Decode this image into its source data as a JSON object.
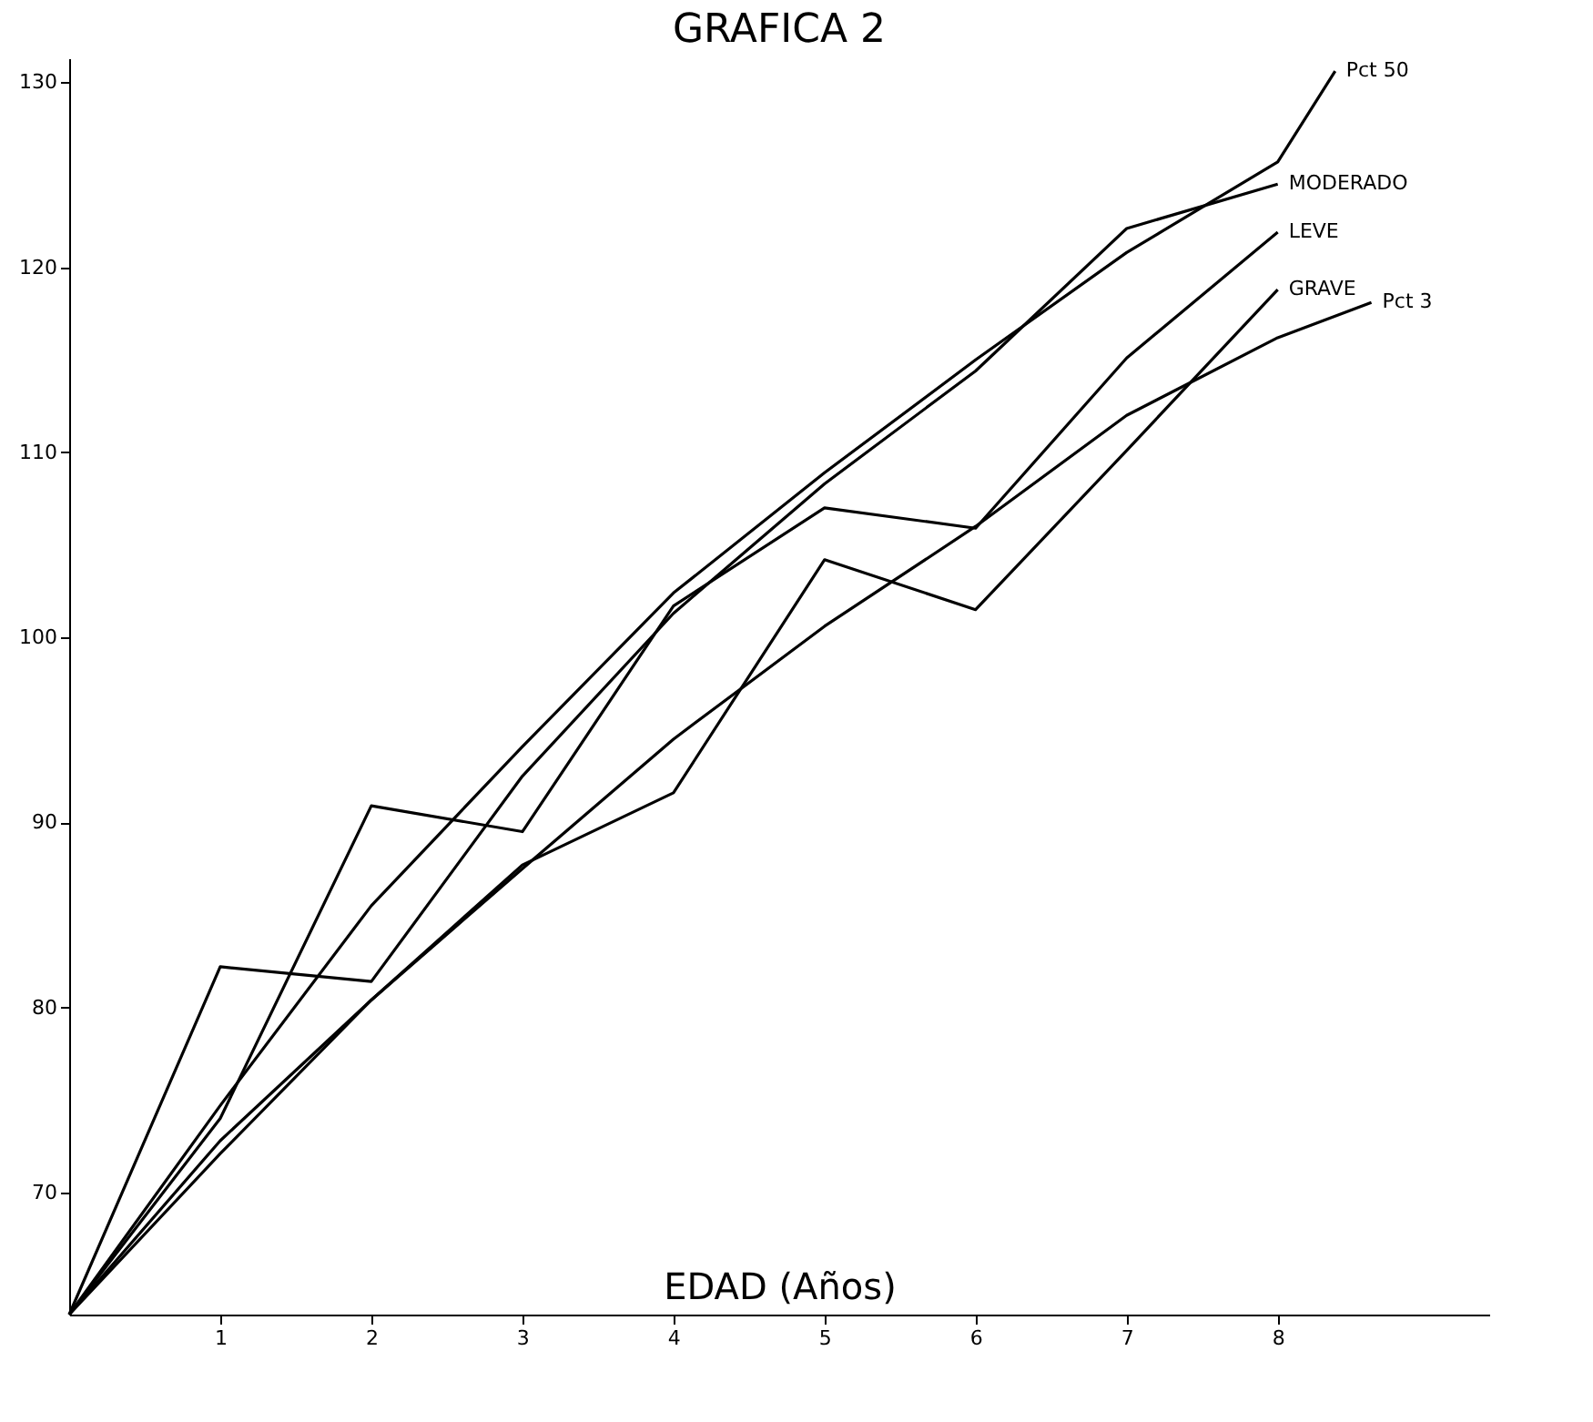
{
  "chart_data": {
    "type": "line",
    "title": "GRAFICA 2",
    "xlabel": "EDAD (Años)",
    "x": [
      0,
      1,
      2,
      3,
      4,
      5,
      6,
      7,
      8
    ],
    "xlim": [
      0,
      9.4
    ],
    "xticks": [
      1,
      2,
      3,
      4,
      5,
      6,
      7,
      8
    ],
    "ylim": [
      63.4,
      131.3
    ],
    "yticks": [
      70,
      80,
      90,
      100,
      110,
      120,
      130
    ],
    "grid": false,
    "legend": false,
    "marker": "none",
    "line_style": "solid",
    "series": [
      {
        "name": "Pct 50",
        "color": "#000000",
        "x": [
          0,
          1,
          2,
          3,
          4,
          5,
          6,
          7,
          8,
          8.38
        ],
        "values": [
          63.4,
          74.7,
          85.5,
          94.1,
          102.4,
          108.9,
          115.0,
          120.8,
          125.7,
          130.6
        ]
      },
      {
        "name": "MODERADO",
        "color": "#000000",
        "values": [
          63.4,
          82.2,
          81.4,
          92.5,
          101.3,
          108.3,
          114.4,
          122.1,
          124.5
        ]
      },
      {
        "name": "LEVE",
        "color": "#000000",
        "values": [
          63.4,
          74.0,
          90.9,
          89.5,
          101.7,
          107.0,
          105.9,
          115.1,
          121.9
        ]
      },
      {
        "name": "GRAVE",
        "color": "#000000",
        "values": [
          63.4,
          72.8,
          80.4,
          87.7,
          91.6,
          104.2,
          101.5,
          110.1,
          118.8
        ]
      },
      {
        "name": "Pct 3",
        "color": "#000000",
        "x": [
          0,
          1,
          2,
          3,
          4,
          5,
          6,
          7,
          8,
          8.62
        ],
        "values": [
          63.4,
          72.1,
          80.4,
          87.5,
          94.5,
          100.6,
          106.0,
          112.0,
          116.2,
          118.1
        ]
      }
    ]
  }
}
